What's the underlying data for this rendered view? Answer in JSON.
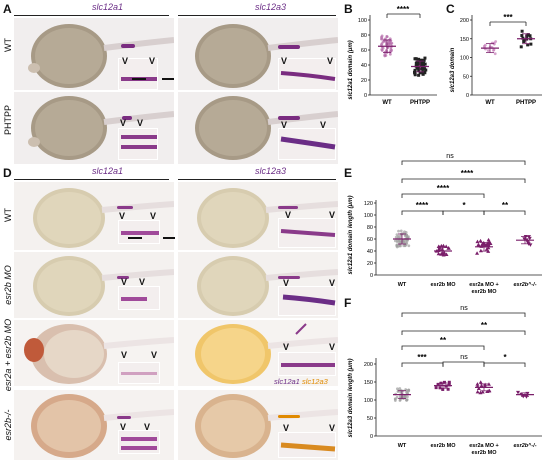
{
  "panels": {
    "A": {
      "letter": "A",
      "gene_left": "slc12a1",
      "gene_right": "slc12a3",
      "row1": "WT",
      "row2": "PHTPP"
    },
    "B": {
      "letter": "B",
      "ylabel": "slc12a1 domain (μm)",
      "sig": "****",
      "categories": [
        "WT",
        "PHTPP"
      ],
      "yticks": [
        "0",
        "20",
        "40",
        "60",
        "80",
        "100"
      ]
    },
    "C": {
      "letter": "C",
      "ylabel": "slc12a3 domain",
      "sig": "***",
      "categories": [
        "WT",
        "PHTPP"
      ],
      "yticks": [
        "0",
        "50",
        "100",
        "150",
        "200"
      ]
    },
    "D": {
      "letter": "D",
      "gene_left": "slc12a1",
      "gene_right": "slc12a3",
      "row1": "WT",
      "row2": "esr2b MO",
      "row3": "esr2a + esr2b MO",
      "row4": "esr2b-/-",
      "legend_a": "slc12a1",
      "legend_b": "slc12a3"
    },
    "E": {
      "letter": "E",
      "ylabel": "slc12a1 domain length (μm)",
      "yticks": [
        "0",
        "20",
        "40",
        "60",
        "80",
        "100",
        "120"
      ],
      "categories": [
        "WT",
        "esr2b MO",
        "esr2a MO +",
        "esr2b^-/-"
      ],
      "cat3_line2": "esr2b MO",
      "sig_top": "ns",
      "sig_2": "****",
      "sig_3": "****",
      "sig_4": "****",
      "sig_5": "*",
      "sig_6": "**"
    },
    "F": {
      "letter": "F",
      "ylabel": "slc12a3 domain length (μm)",
      "yticks": [
        "0",
        "50",
        "100",
        "150",
        "200"
      ],
      "categories": [
        "WT",
        "esr2b MO",
        "esr2a MO +",
        "esr2b^-/-"
      ],
      "cat3_line2": "esr2b MO",
      "sig_top": "ns",
      "sig_2": "**",
      "sig_3": "**",
      "sig_4": "***",
      "sig_5": "ns",
      "sig_6": "*"
    }
  },
  "chart_data": [
    {
      "type": "scatter",
      "title": "",
      "ylabel": "slc12a1 domain (μm)",
      "categories": [
        "WT",
        "PHTPP"
      ],
      "ylim": [
        0,
        100
      ],
      "series": [
        {
          "values": [
            65,
            38
          ]
        }
      ],
      "mean": [
        65,
        38
      ]
    },
    {
      "type": "scatter",
      "title": "",
      "ylabel": "slc12a3 domain",
      "categories": [
        "WT",
        "PHTPP"
      ],
      "ylim": [
        0,
        200
      ],
      "series": [
        {
          "values": [
            125,
            150
          ]
        }
      ],
      "mean": [
        125,
        150
      ]
    },
    {
      "type": "scatter",
      "title": "",
      "ylabel": "slc12a1 domain length (μm)",
      "categories": [
        "WT",
        "esr2b MO",
        "esr2a MO + esr2b MO",
        "esr2b-/-"
      ],
      "ylim": [
        0,
        120
      ],
      "series": [
        {
          "values": [
            60,
            40,
            47,
            58
          ]
        }
      ],
      "mean": [
        60,
        40,
        47,
        58
      ]
    },
    {
      "type": "scatter",
      "title": "",
      "ylabel": "slc12a3 domain length (μm)",
      "categories": [
        "WT",
        "esr2b MO",
        "esr2a MO + esr2b MO",
        "esr2b-/-"
      ],
      "ylim": [
        0,
        200
      ],
      "series": [
        {
          "values": [
            115,
            140,
            135,
            115
          ]
        }
      ],
      "mean": [
        115,
        140,
        135,
        115
      ]
    }
  ]
}
